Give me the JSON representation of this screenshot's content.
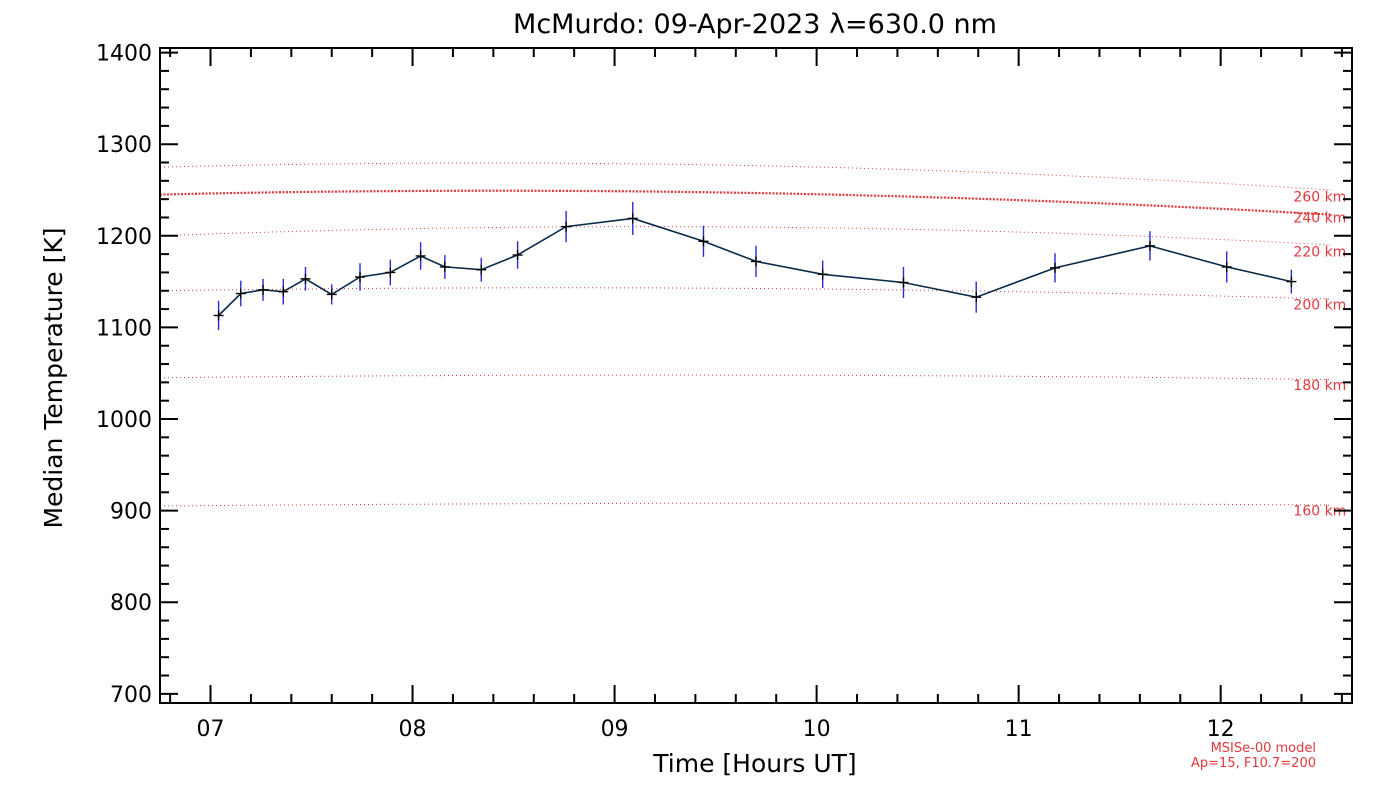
{
  "chart_data": {
    "type": "line",
    "title": "McMurdo: 09-Apr-2023 λ=630.0 nm",
    "xlabel": "Time [Hours UT]",
    "ylabel": "Median Temperature [K]",
    "xlim": [
      6.75,
      12.65
    ],
    "ylim": [
      690,
      1405
    ],
    "x_ticks": [
      7,
      8,
      9,
      10,
      11,
      12
    ],
    "x_tick_labels": [
      "07",
      "08",
      "09",
      "10",
      "11",
      "12"
    ],
    "y_ticks": [
      700,
      800,
      900,
      1000,
      1100,
      1200,
      1300,
      1400
    ],
    "y_tick_labels": [
      "700",
      "800",
      "900",
      "1000",
      "1100",
      "1200",
      "1300",
      "1400"
    ],
    "series": [
      {
        "name": "Median temperature",
        "color": "#0a2a4a",
        "error_color": "#2b2bd6",
        "x": [
          7.04,
          7.15,
          7.26,
          7.36,
          7.47,
          7.6,
          7.74,
          7.89,
          8.04,
          8.16,
          8.34,
          8.52,
          8.76,
          9.09,
          9.44,
          9.7,
          10.03,
          10.43,
          10.79,
          11.18,
          11.65,
          12.03,
          12.35
        ],
        "values": [
          1113,
          1137,
          1141,
          1139,
          1153,
          1136,
          1155,
          1160,
          1178,
          1166,
          1163,
          1179,
          1210,
          1219,
          1194,
          1172,
          1158,
          1149,
          1133,
          1165,
          1189,
          1166,
          1150
        ],
        "errors": [
          16,
          14,
          12,
          14,
          13,
          11,
          15,
          14,
          15,
          13,
          13,
          15,
          17,
          18,
          17,
          17,
          15,
          17,
          17,
          16,
          16,
          17,
          13
        ]
      }
    ],
    "model_lines": [
      {
        "label": "260 km",
        "t_start": 1275,
        "t_mid": 1278,
        "t_end": 1250,
        "dense": false
      },
      {
        "label": "240 km",
        "t_start": 1245,
        "t_mid": 1248,
        "t_end": 1223,
        "dense": true
      },
      {
        "label": "220 km",
        "t_start": 1200,
        "t_mid": 1210,
        "t_end": 1190,
        "dense": false
      },
      {
        "label": "200 km",
        "t_start": 1140,
        "t_mid": 1143,
        "t_end": 1131,
        "dense": false
      },
      {
        "label": "180 km",
        "t_start": 1045,
        "t_mid": 1048,
        "t_end": 1043,
        "dense": false
      },
      {
        "label": "160 km",
        "t_start": 905,
        "t_mid": 908,
        "t_end": 906,
        "dense": false
      }
    ],
    "model_label_y": [
      1243,
      1220,
      1183,
      1125,
      1037,
      900
    ],
    "model_color": "#e0393e"
  },
  "model_note": {
    "line1": "MSISe-00 model",
    "line2": "Ap=15, F10.7=200"
  }
}
